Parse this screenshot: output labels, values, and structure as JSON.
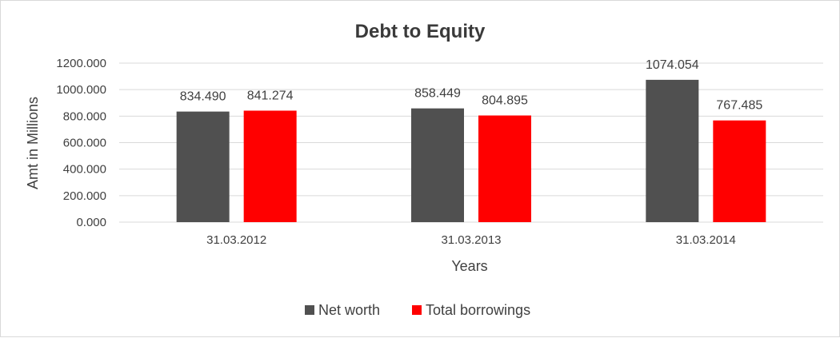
{
  "chart_data": {
    "type": "bar",
    "title": "Debt to Equity",
    "xlabel": "Years",
    "ylabel": "Amt in Millions",
    "categories": [
      "31.03.2012",
      "31.03.2013",
      "31.03.2014"
    ],
    "series": [
      {
        "name": "Net worth",
        "color": "#505050",
        "values": [
          834.49,
          858.449,
          1074.054
        ],
        "labels": [
          "834.490",
          "858.449",
          "1074.054"
        ]
      },
      {
        "name": "Total borrowings",
        "color": "#ff0000",
        "values": [
          841.274,
          804.895,
          767.485
        ],
        "labels": [
          "841.274",
          "804.895",
          "767.485"
        ]
      }
    ],
    "ylim": [
      0,
      1200
    ],
    "yticks": [
      "0.000",
      "200.000",
      "400.000",
      "600.000",
      "800.000",
      "1000.000",
      "1200.000"
    ],
    "grid": true,
    "legend_position": "bottom"
  }
}
